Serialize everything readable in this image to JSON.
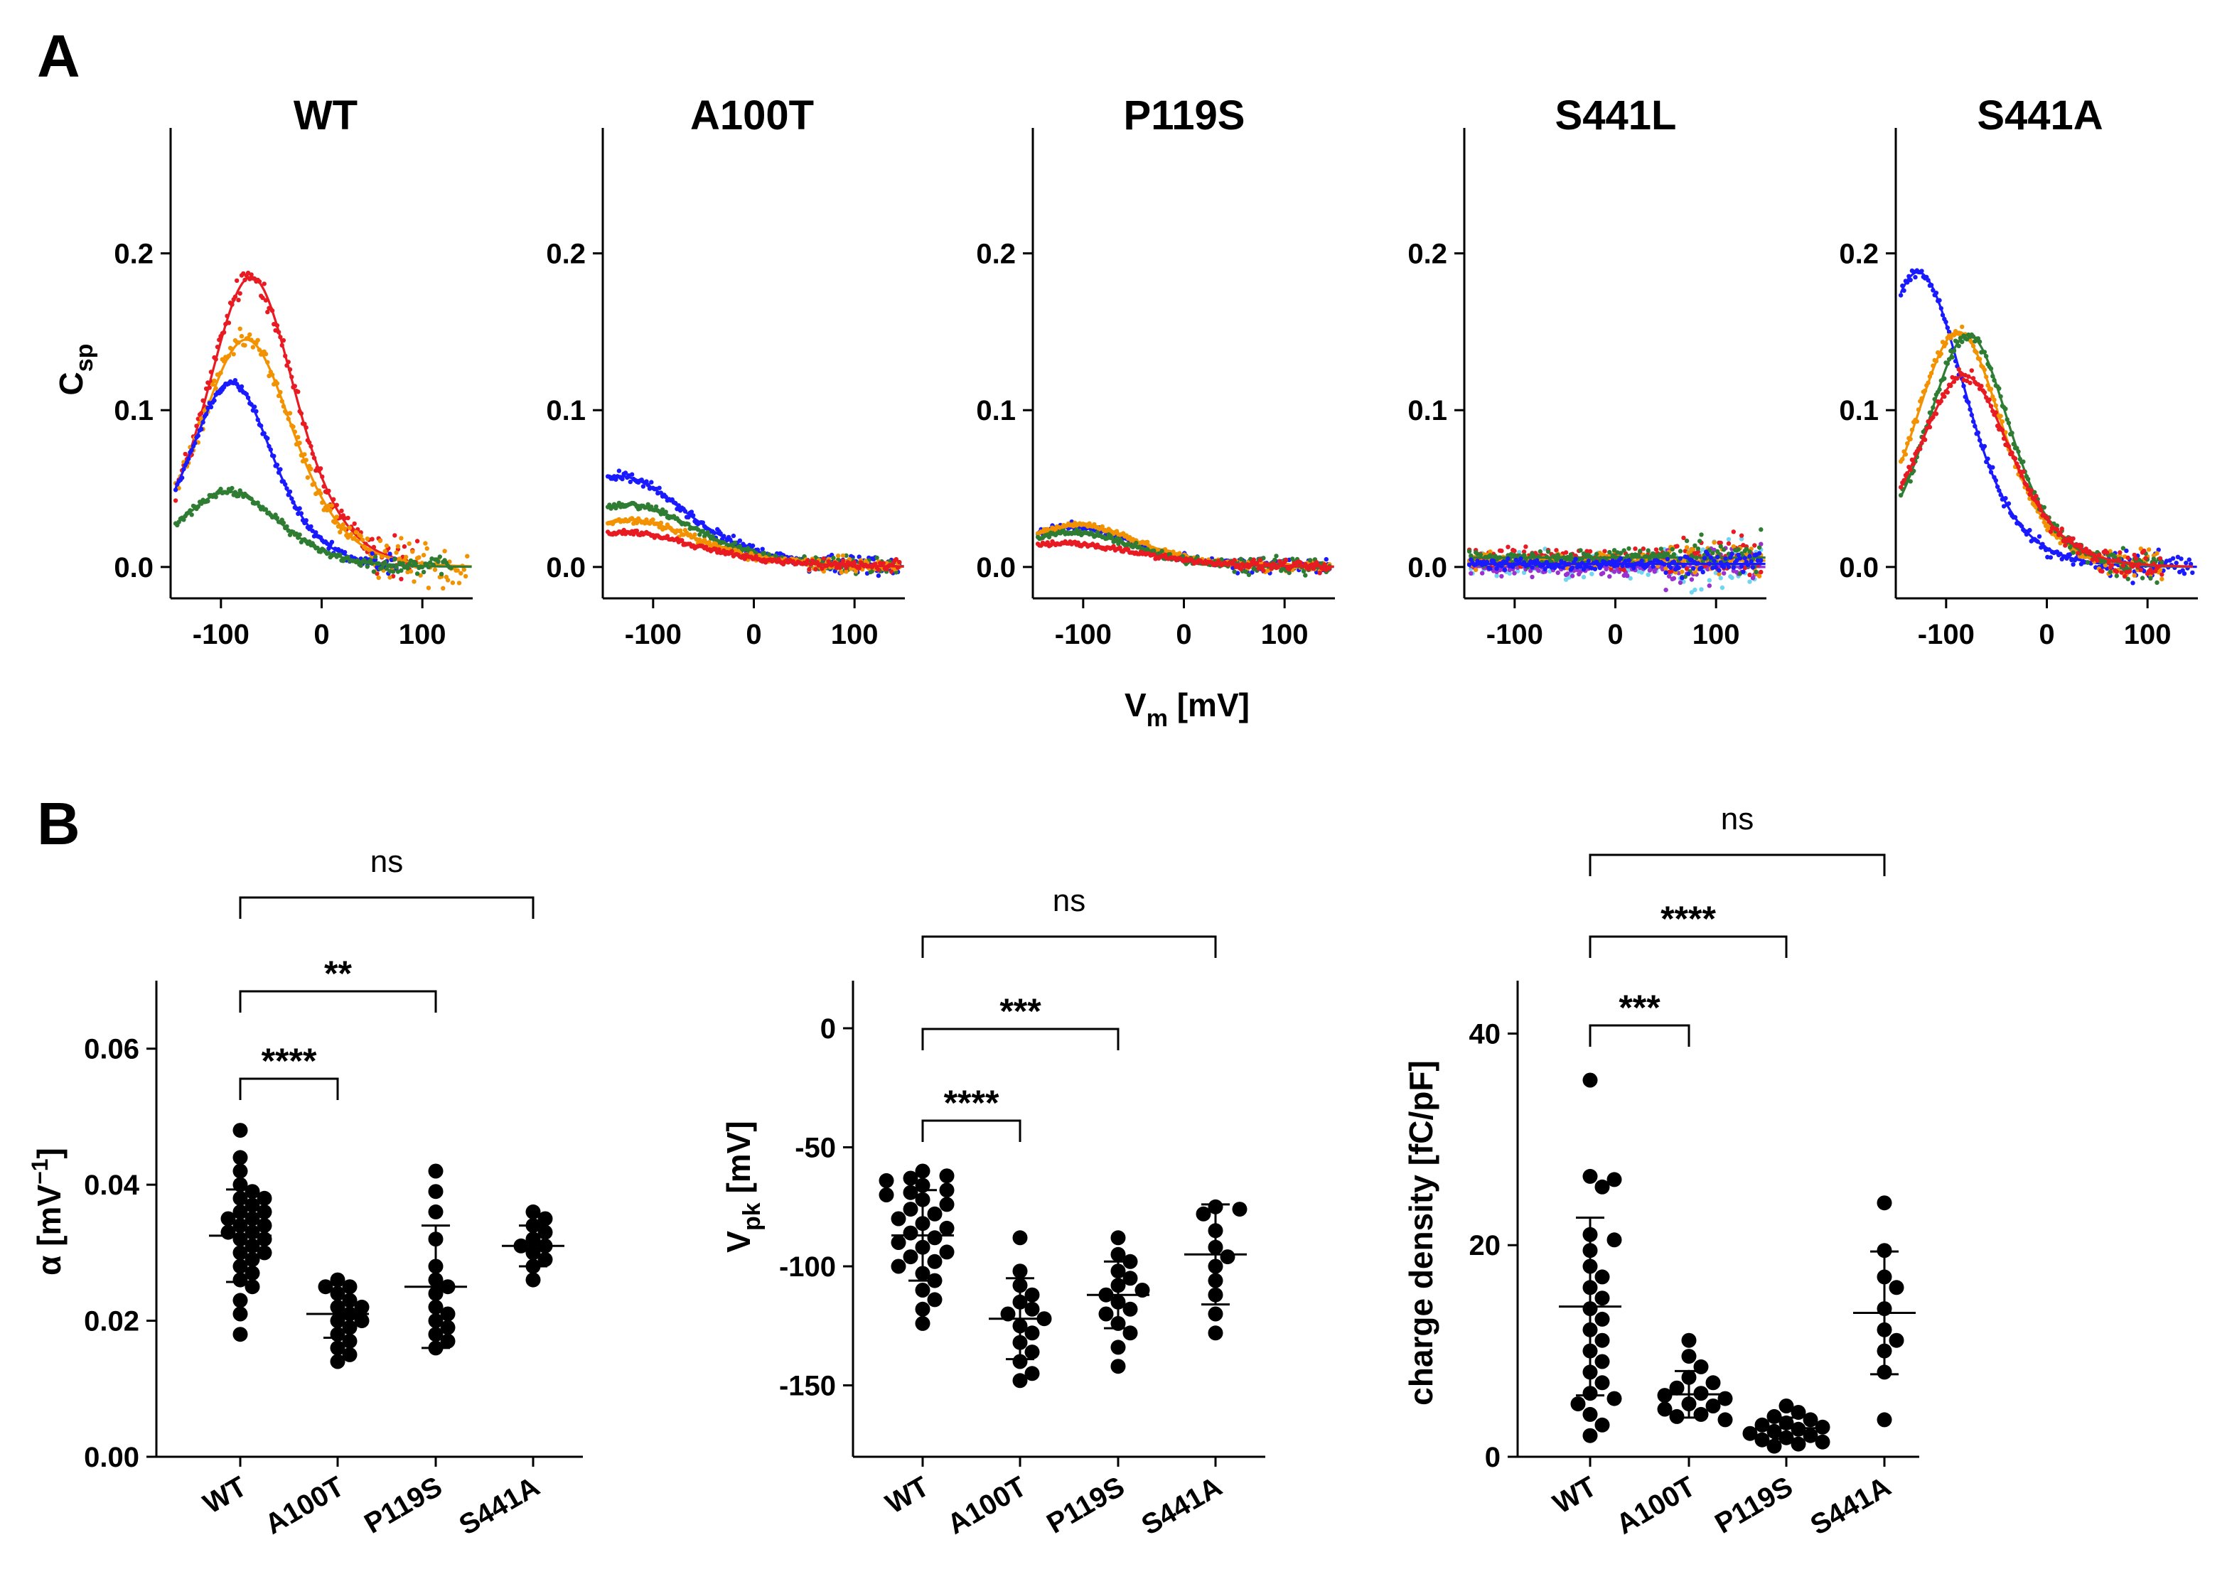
{
  "figure": {
    "panel_a_label": "A",
    "panel_b_label": "B"
  },
  "colors": {
    "red": "#e81b23",
    "orange": "#f39200",
    "blue": "#1a1aff",
    "green": "#2e7d32",
    "cyan": "#6fd5f0",
    "purple": "#9b30d0",
    "black": "#000000"
  },
  "panel_a": {
    "shared_xlabel_main": "V",
    "shared_xlabel_sub": "m",
    "shared_xlabel_unit": " [mV]",
    "ylabel_main": "C",
    "ylabel_sub": "sp"
  },
  "panel_b": {
    "alpha_ylabel": "α [mV",
    "alpha_ylabel_sup": "−1",
    "alpha_ylabel_end": "]",
    "vpk_ylabel_main": "V",
    "vpk_ylabel_sub": "pk",
    "vpk_ylabel_unit": " [mV]",
    "charge_ylabel": "charge density [fC/pF]"
  },
  "chart_data": [
    {
      "type": "line",
      "title": "WT",
      "xlabel": "Vm [mV]",
      "ylabel": "Csp",
      "xlim": [
        -150,
        150
      ],
      "ylim": [
        -0.02,
        0.28
      ],
      "xticks": [
        -100,
        0,
        100
      ],
      "yticks": [
        0.0,
        0.1,
        0.2
      ],
      "xtick_labels": [
        "-100",
        "0",
        "100"
      ],
      "ytick_labels": [
        "0.0",
        "0.1",
        "0.2"
      ],
      "series": [
        {
          "name": "red",
          "color": "#e81b23",
          "peak": 0.185,
          "vpk": -70,
          "alpha": 0.034,
          "offset": 0.0,
          "noise": 0.01,
          "x_min": -145,
          "x_max": 95
        },
        {
          "name": "orange",
          "color": "#f39200",
          "peak": 0.145,
          "vpk": -75,
          "alpha": 0.032,
          "offset": 0.0,
          "noise": 0.008,
          "x_min": -145,
          "x_max": 145
        },
        {
          "name": "blue",
          "color": "#1a1aff",
          "peak": 0.118,
          "vpk": -90,
          "alpha": 0.036,
          "offset": 0.0,
          "noise": 0.004,
          "x_min": -145,
          "x_max": 75
        },
        {
          "name": "green",
          "color": "#2e7d32",
          "peak": 0.048,
          "vpk": -92,
          "alpha": 0.03,
          "offset": 0.0,
          "noise": 0.003,
          "x_min": -145,
          "x_max": 130
        }
      ]
    },
    {
      "type": "line",
      "title": "A100T",
      "xlim": [
        -150,
        150
      ],
      "ylim": [
        -0.02,
        0.28
      ],
      "xticks": [
        -100,
        0,
        100
      ],
      "yticks": [
        0.0,
        0.1,
        0.2
      ],
      "xtick_labels": [
        "-100",
        "0",
        "100"
      ],
      "ytick_labels": [
        "0.0",
        "0.1",
        "0.2"
      ],
      "series": [
        {
          "name": "blue",
          "color": "#1a1aff",
          "peak": 0.058,
          "vpk": -135,
          "alpha": 0.022,
          "offset": 0.0,
          "noise": 0.004,
          "x_min": -145,
          "x_max": 145
        },
        {
          "name": "green",
          "color": "#2e7d32",
          "peak": 0.04,
          "vpk": -125,
          "alpha": 0.022,
          "offset": 0.0,
          "noise": 0.003,
          "x_min": -145,
          "x_max": 145
        },
        {
          "name": "orange",
          "color": "#f39200",
          "peak": 0.03,
          "vpk": -125,
          "alpha": 0.022,
          "offset": 0.0,
          "noise": 0.003,
          "x_min": -145,
          "x_max": 145
        },
        {
          "name": "red",
          "color": "#e81b23",
          "peak": 0.022,
          "vpk": -130,
          "alpha": 0.02,
          "offset": 0.0,
          "noise": 0.002,
          "x_min": -145,
          "x_max": 145
        }
      ]
    },
    {
      "type": "line",
      "title": "P119S",
      "xlim": [
        -150,
        150
      ],
      "ylim": [
        -0.02,
        0.28
      ],
      "xticks": [
        -100,
        0,
        100
      ],
      "yticks": [
        0.0,
        0.1,
        0.2
      ],
      "xtick_labels": [
        "-100",
        "0",
        "100"
      ],
      "ytick_labels": [
        "0.0",
        "0.1",
        "0.2"
      ],
      "series": [
        {
          "name": "blue",
          "color": "#1a1aff",
          "peak": 0.026,
          "vpk": -110,
          "alpha": 0.025,
          "offset": 0.0,
          "noise": 0.003,
          "x_min": -145,
          "x_max": 145
        },
        {
          "name": "orange",
          "color": "#f39200",
          "peak": 0.027,
          "vpk": -105,
          "alpha": 0.025,
          "offset": 0.0,
          "noise": 0.002,
          "x_min": -145,
          "x_max": 145
        },
        {
          "name": "green",
          "color": "#2e7d32",
          "peak": 0.022,
          "vpk": -110,
          "alpha": 0.025,
          "offset": 0.0,
          "noise": 0.003,
          "x_min": -145,
          "x_max": 145
        },
        {
          "name": "red",
          "color": "#e81b23",
          "peak": 0.015,
          "vpk": -120,
          "alpha": 0.02,
          "offset": 0.0,
          "noise": 0.002,
          "x_min": -145,
          "x_max": 145
        }
      ]
    },
    {
      "type": "line",
      "title": "S441L",
      "xlim": [
        -150,
        150
      ],
      "ylim": [
        -0.02,
        0.28
      ],
      "xticks": [
        -100,
        0,
        100
      ],
      "yticks": [
        0.0,
        0.1,
        0.2
      ],
      "xtick_labels": [
        "-100",
        "0",
        "100"
      ],
      "ytick_labels": [
        "0.0",
        "0.1",
        "0.2"
      ],
      "series": [
        {
          "name": "cyan",
          "color": "#6fd5f0",
          "peak": 0.0,
          "vpk": 0,
          "alpha": 0.02,
          "offset": 0.002,
          "noise": 0.01,
          "x_min": -145,
          "x_max": 145
        },
        {
          "name": "purple",
          "color": "#9b30d0",
          "peak": 0.0,
          "vpk": 0,
          "alpha": 0.02,
          "offset": 0.0,
          "noise": 0.007,
          "x_min": -145,
          "x_max": 145
        },
        {
          "name": "red",
          "color": "#e81b23",
          "peak": 0.0,
          "vpk": 0,
          "alpha": 0.02,
          "offset": 0.006,
          "noise": 0.008,
          "x_min": -145,
          "x_max": 145
        },
        {
          "name": "orange",
          "color": "#f39200",
          "peak": 0.0,
          "vpk": 0,
          "alpha": 0.02,
          "offset": 0.004,
          "noise": 0.006,
          "x_min": -145,
          "x_max": 145
        },
        {
          "name": "green",
          "color": "#2e7d32",
          "peak": 0.0,
          "vpk": 0,
          "alpha": 0.02,
          "offset": 0.006,
          "noise": 0.007,
          "x_min": -145,
          "x_max": 145
        },
        {
          "name": "blue",
          "color": "#1a1aff",
          "peak": 0.0,
          "vpk": 0,
          "alpha": 0.02,
          "offset": 0.002,
          "noise": 0.004,
          "x_min": -145,
          "x_max": 145
        }
      ]
    },
    {
      "type": "line",
      "title": "S441A",
      "xlim": [
        -150,
        150
      ],
      "ylim": [
        -0.02,
        0.28
      ],
      "xticks": [
        -100,
        0,
        100
      ],
      "yticks": [
        0.0,
        0.1,
        0.2
      ],
      "xtick_labels": [
        "-100",
        "0",
        "100"
      ],
      "ytick_labels": [
        "0.0",
        "0.1",
        "0.2"
      ],
      "series": [
        {
          "name": "blue",
          "color": "#1a1aff",
          "peak": 0.188,
          "vpk": -128,
          "alpha": 0.032,
          "offset": 0.0,
          "noise": 0.005,
          "x_min": -145,
          "x_max": 145
        },
        {
          "name": "orange",
          "color": "#f39200",
          "peak": 0.15,
          "vpk": -88,
          "alpha": 0.034,
          "offset": 0.0,
          "noise": 0.005,
          "x_min": -145,
          "x_max": 115
        },
        {
          "name": "green",
          "color": "#2e7d32",
          "peak": 0.148,
          "vpk": -78,
          "alpha": 0.036,
          "offset": 0.0,
          "noise": 0.005,
          "x_min": -145,
          "x_max": 115
        },
        {
          "name": "red",
          "color": "#e81b23",
          "peak": 0.122,
          "vpk": -82,
          "alpha": 0.032,
          "offset": 0.0,
          "noise": 0.005,
          "x_min": -145,
          "x_max": 115
        }
      ]
    },
    {
      "type": "scatter",
      "title": "alpha",
      "ylabel": "α [mV−1]",
      "categories": [
        "WT",
        "A100T",
        "P119S",
        "S441A"
      ],
      "ylim": [
        0.0,
        0.07
      ],
      "yticks": [
        0.0,
        0.02,
        0.04,
        0.06
      ],
      "ytick_labels": [
        "0.00",
        "0.02",
        "0.04",
        "0.06"
      ],
      "groups": [
        {
          "name": "WT",
          "mean": 0.0325,
          "sd": 0.0068,
          "points": [
            0.048,
            0.044,
            0.042,
            0.04,
            0.039,
            0.038,
            0.038,
            0.037,
            0.036,
            0.036,
            0.035,
            0.035,
            0.034,
            0.034,
            0.033,
            0.033,
            0.032,
            0.032,
            0.031,
            0.03,
            0.03,
            0.029,
            0.028,
            0.027,
            0.026,
            0.025,
            0.023,
            0.021,
            0.018
          ]
        },
        {
          "name": "A100T",
          "mean": 0.021,
          "sd": 0.0035,
          "points": [
            0.026,
            0.025,
            0.025,
            0.024,
            0.023,
            0.022,
            0.022,
            0.021,
            0.02,
            0.02,
            0.019,
            0.018,
            0.017,
            0.016,
            0.015,
            0.014
          ]
        },
        {
          "name": "P119S",
          "mean": 0.025,
          "sd": 0.009,
          "points": [
            0.042,
            0.039,
            0.036,
            0.032,
            0.028,
            0.026,
            0.025,
            0.024,
            0.022,
            0.021,
            0.02,
            0.019,
            0.018,
            0.017,
            0.016
          ]
        },
        {
          "name": "S441A",
          "mean": 0.031,
          "sd": 0.003,
          "points": [
            0.036,
            0.035,
            0.034,
            0.033,
            0.032,
            0.031,
            0.031,
            0.03,
            0.029,
            0.028,
            0.026
          ]
        }
      ],
      "comparisons": [
        {
          "from": "WT",
          "to": "A100T",
          "label": "****"
        },
        {
          "from": "WT",
          "to": "P119S",
          "label": "**"
        },
        {
          "from": "WT",
          "to": "S441A",
          "label": "ns"
        }
      ]
    },
    {
      "type": "scatter",
      "title": "Vpk",
      "ylabel": "Vpk [mV]",
      "categories": [
        "WT",
        "A100T",
        "P119S",
        "S441A"
      ],
      "ylim": [
        -180,
        20
      ],
      "yticks": [
        -150,
        -100,
        -50,
        0
      ],
      "ytick_labels": [
        "-150",
        "-100",
        "-50",
        "0"
      ],
      "groups": [
        {
          "name": "WT",
          "mean": -87,
          "sd": 19,
          "points": [
            -60,
            -62,
            -63,
            -64,
            -66,
            -68,
            -69,
            -70,
            -72,
            -74,
            -76,
            -78,
            -80,
            -82,
            -84,
            -86,
            -88,
            -90,
            -92,
            -94,
            -96,
            -98,
            -100,
            -103,
            -106,
            -110,
            -114,
            -118,
            -124
          ]
        },
        {
          "name": "A100T",
          "mean": -122,
          "sd": 17,
          "points": [
            -88,
            -102,
            -108,
            -112,
            -115,
            -118,
            -120,
            -122,
            -125,
            -128,
            -132,
            -136,
            -140,
            -145,
            -148
          ]
        },
        {
          "name": "P119S",
          "mean": -112,
          "sd": 14,
          "points": [
            -88,
            -95,
            -98,
            -102,
            -105,
            -108,
            -110,
            -112,
            -115,
            -118,
            -120,
            -124,
            -128,
            -134,
            -142
          ]
        },
        {
          "name": "S441A",
          "mean": -95,
          "sd": 21,
          "points": [
            -75,
            -76,
            -78,
            -85,
            -92,
            -96,
            -100,
            -106,
            -112,
            -120,
            -128
          ]
        }
      ],
      "comparisons": [
        {
          "from": "WT",
          "to": "A100T",
          "label": "****"
        },
        {
          "from": "WT",
          "to": "P119S",
          "label": "***"
        },
        {
          "from": "WT",
          "to": "S441A",
          "label": "ns"
        }
      ]
    },
    {
      "type": "scatter",
      "title": "charge density",
      "ylabel": "charge density [fC/pF]",
      "categories": [
        "WT",
        "A100T",
        "P119S",
        "S441A"
      ],
      "ylim": [
        0,
        45
      ],
      "yticks": [
        0,
        20,
        40
      ],
      "ytick_labels": [
        "0",
        "20",
        "40"
      ],
      "groups": [
        {
          "name": "WT",
          "mean": 14.2,
          "sd": 8.4,
          "points": [
            35.6,
            26.5,
            26.2,
            25.5,
            21.0,
            20.5,
            19.5,
            18.0,
            17.0,
            16.0,
            15.0,
            14.0,
            13.0,
            12.0,
            11.0,
            10.0,
            9.0,
            8.0,
            7.0,
            6.0,
            5.5,
            5.0,
            4.0,
            3.0,
            2.0
          ]
        },
        {
          "name": "A100T",
          "mean": 5.9,
          "sd": 2.2,
          "points": [
            11.0,
            9.5,
            8.5,
            7.5,
            7.0,
            6.5,
            6.0,
            5.8,
            5.5,
            5.0,
            4.8,
            4.5,
            4.0,
            3.8,
            3.5
          ]
        },
        {
          "name": "P119S",
          "mean": 2.7,
          "sd": 1.0,
          "points": [
            4.8,
            4.2,
            3.8,
            3.5,
            3.2,
            3.0,
            2.8,
            2.6,
            2.4,
            2.2,
            2.0,
            1.8,
            1.6,
            1.4,
            1.2,
            1.0
          ]
        },
        {
          "name": "S441A",
          "mean": 13.6,
          "sd": 5.8,
          "points": [
            24.0,
            19.5,
            17.0,
            16.0,
            14.0,
            12.0,
            11.0,
            10.0,
            8.0,
            3.5
          ]
        }
      ],
      "comparisons": [
        {
          "from": "WT",
          "to": "A100T",
          "label": "***"
        },
        {
          "from": "WT",
          "to": "P119S",
          "label": "****"
        },
        {
          "from": "WT",
          "to": "S441A",
          "label": "ns"
        }
      ]
    }
  ]
}
